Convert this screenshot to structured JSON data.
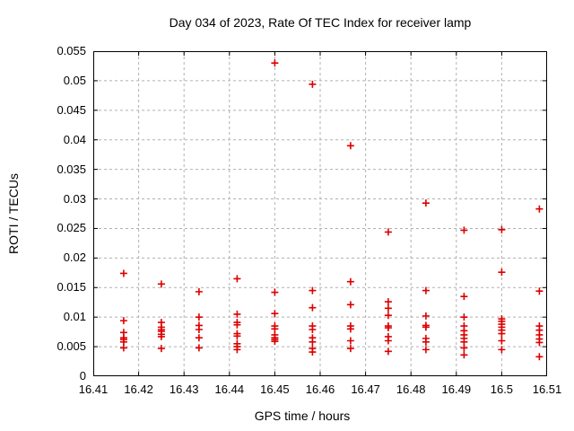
{
  "chart_data": {
    "type": "scatter",
    "title": "Day 034 of 2023, Rate Of TEC Index for receiver lamp",
    "xlabel": "GPS time / hours",
    "ylabel": "ROTI / TECUs",
    "xlim": [
      16.41,
      16.51
    ],
    "ylim": [
      0,
      0.055
    ],
    "x_ticks": [
      16.41,
      16.42,
      16.43,
      16.44,
      16.45,
      16.46,
      16.47,
      16.48,
      16.49,
      16.5,
      16.51
    ],
    "x_tick_labels": [
      "16.41",
      "16.42",
      "16.43",
      "16.44",
      "16.45",
      "16.46",
      "16.47",
      "16.48",
      "16.49",
      "16.5",
      "16.51"
    ],
    "y_ticks": [
      0,
      0.005,
      0.01,
      0.015,
      0.02,
      0.025,
      0.03,
      0.035,
      0.04,
      0.045,
      0.05,
      0.055
    ],
    "y_tick_labels": [
      "0",
      "0.005",
      "0.01",
      "0.015",
      "0.02",
      "0.025",
      "0.03",
      "0.035",
      "0.04",
      "0.045",
      "0.05",
      "0.055"
    ],
    "grid": true,
    "legend": "none",
    "marker": "plus",
    "marker_color": "#dd0000",
    "grid_color": "#b0b0b0",
    "border_color": "#000000",
    "background_color": "#ffffff",
    "points": [
      [
        16.4167,
        0.0174
      ],
      [
        16.4167,
        0.0094
      ],
      [
        16.4167,
        0.0074
      ],
      [
        16.4167,
        0.0065
      ],
      [
        16.4167,
        0.0062
      ],
      [
        16.4167,
        0.0058
      ],
      [
        16.4167,
        0.0048
      ],
      [
        16.425,
        0.0156
      ],
      [
        16.425,
        0.0091
      ],
      [
        16.425,
        0.0083
      ],
      [
        16.425,
        0.0079
      ],
      [
        16.425,
        0.0076
      ],
      [
        16.425,
        0.0071
      ],
      [
        16.425,
        0.0067
      ],
      [
        16.425,
        0.0047
      ],
      [
        16.4333,
        0.0143
      ],
      [
        16.4333,
        0.01
      ],
      [
        16.4333,
        0.0086
      ],
      [
        16.4333,
        0.0079
      ],
      [
        16.4333,
        0.0065
      ],
      [
        16.4333,
        0.0048
      ],
      [
        16.4417,
        0.0165
      ],
      [
        16.4417,
        0.0105
      ],
      [
        16.4417,
        0.0091
      ],
      [
        16.4417,
        0.0087
      ],
      [
        16.4417,
        0.0072
      ],
      [
        16.4417,
        0.0068
      ],
      [
        16.4417,
        0.0055
      ],
      [
        16.4417,
        0.005
      ],
      [
        16.4417,
        0.0045
      ],
      [
        16.45,
        0.053
      ],
      [
        16.45,
        0.0142
      ],
      [
        16.45,
        0.0106
      ],
      [
        16.45,
        0.0085
      ],
      [
        16.45,
        0.008
      ],
      [
        16.45,
        0.007
      ],
      [
        16.45,
        0.0065
      ],
      [
        16.45,
        0.0062
      ],
      [
        16.45,
        0.0059
      ],
      [
        16.4583,
        0.0494
      ],
      [
        16.4583,
        0.0145
      ],
      [
        16.4583,
        0.0116
      ],
      [
        16.4583,
        0.0085
      ],
      [
        16.4583,
        0.0079
      ],
      [
        16.4583,
        0.0065
      ],
      [
        16.4583,
        0.0058
      ],
      [
        16.4583,
        0.0047
      ],
      [
        16.4583,
        0.0041
      ],
      [
        16.4667,
        0.039
      ],
      [
        16.4667,
        0.016
      ],
      [
        16.4667,
        0.0121
      ],
      [
        16.4667,
        0.0085
      ],
      [
        16.4667,
        0.008
      ],
      [
        16.4667,
        0.006
      ],
      [
        16.4667,
        0.0047
      ],
      [
        16.475,
        0.0244
      ],
      [
        16.475,
        0.0126
      ],
      [
        16.475,
        0.0115
      ],
      [
        16.475,
        0.0103
      ],
      [
        16.475,
        0.0085
      ],
      [
        16.475,
        0.0082
      ],
      [
        16.475,
        0.0067
      ],
      [
        16.475,
        0.006
      ],
      [
        16.475,
        0.0042
      ],
      [
        16.4833,
        0.0293
      ],
      [
        16.4833,
        0.0145
      ],
      [
        16.4833,
        0.0102
      ],
      [
        16.4833,
        0.0086
      ],
      [
        16.4833,
        0.0083
      ],
      [
        16.4833,
        0.0064
      ],
      [
        16.4833,
        0.0058
      ],
      [
        16.4833,
        0.0045
      ],
      [
        16.4917,
        0.0247
      ],
      [
        16.4917,
        0.0135
      ],
      [
        16.4917,
        0.01
      ],
      [
        16.4917,
        0.0085
      ],
      [
        16.4917,
        0.0077
      ],
      [
        16.4917,
        0.007
      ],
      [
        16.4917,
        0.0064
      ],
      [
        16.4917,
        0.0058
      ],
      [
        16.4917,
        0.0048
      ],
      [
        16.4917,
        0.0036
      ],
      [
        16.5,
        0.0248
      ],
      [
        16.5,
        0.0176
      ],
      [
        16.5,
        0.0097
      ],
      [
        16.5,
        0.0093
      ],
      [
        16.5,
        0.0088
      ],
      [
        16.5,
        0.0083
      ],
      [
        16.5,
        0.0078
      ],
      [
        16.5,
        0.0072
      ],
      [
        16.5,
        0.006
      ],
      [
        16.5,
        0.0045
      ],
      [
        16.5083,
        0.0283
      ],
      [
        16.5083,
        0.0144
      ],
      [
        16.5083,
        0.0085
      ],
      [
        16.5083,
        0.0078
      ],
      [
        16.5083,
        0.007
      ],
      [
        16.5083,
        0.0063
      ],
      [
        16.5083,
        0.0057
      ],
      [
        16.5083,
        0.0033
      ]
    ]
  }
}
